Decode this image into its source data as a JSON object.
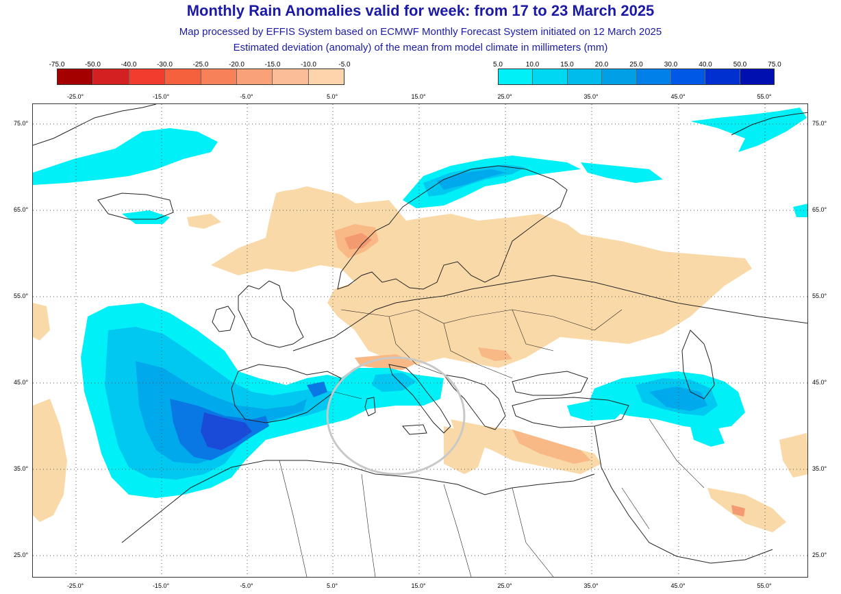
{
  "header": {
    "title": "Monthly Rain Anomalies valid for week: from 17 to 23 March 2025",
    "subtitle1": "Map processed by EFFIS System based on ECMWF Monthly Forecast System initiated on 12 March 2025",
    "subtitle2": "Estimated deviation (anomaly) of the mean from model climate in millimeters (mm)"
  },
  "legend_negative": {
    "ticks": [
      "-75.0",
      "-50.0",
      "-40.0",
      "-30.0",
      "-25.0",
      "-20.0",
      "-15.0",
      "-10.0",
      "-5.0"
    ],
    "colors": [
      "#a50000",
      "#d42020",
      "#f23c2e",
      "#f5603d",
      "#f7825a",
      "#f9a27a",
      "#fbbd97",
      "#fdd4ab"
    ]
  },
  "legend_positive": {
    "ticks": [
      "5.0",
      "10.0",
      "15.0",
      "20.0",
      "25.0",
      "30.0",
      "40.0",
      "50.0",
      "75.0"
    ],
    "colors": [
      "#00f0f8",
      "#00d8f2",
      "#00bcec",
      "#00a0e6",
      "#0080e8",
      "#0058e6",
      "#0030d0",
      "#0010b0"
    ]
  },
  "axes": {
    "longitude_labels_top": [
      "-25.0°",
      "-15.0°",
      "-5.0°",
      "5.0°",
      "15.0°",
      "25.0°",
      "35.0°",
      "45.0°",
      "55.0°"
    ],
    "longitude_labels_bottom": [
      "-25.0°",
      "-15.0°",
      "-5.0°",
      "5.0°",
      "15.0°",
      "25.0°",
      "35.0°",
      "45.0°",
      "55.0°"
    ],
    "latitude_labels": [
      "75.0°",
      "65.0°",
      "55.0°",
      "45.0°",
      "35.0°",
      "25.0°"
    ]
  },
  "map": {
    "colors": {
      "dry_light": "#fad9a8",
      "dry_mid": "#f8b987",
      "dry_strong": "#f49a70",
      "wet_1": "#00f0f8",
      "wet_2": "#00c8f0",
      "wet_3": "#00a8ec",
      "wet_4": "#0a78e4",
      "wet_5": "#1a4ad8",
      "coast": "#222222",
      "grid": "#555555",
      "highlight_circle": "#c8c8c8"
    }
  }
}
